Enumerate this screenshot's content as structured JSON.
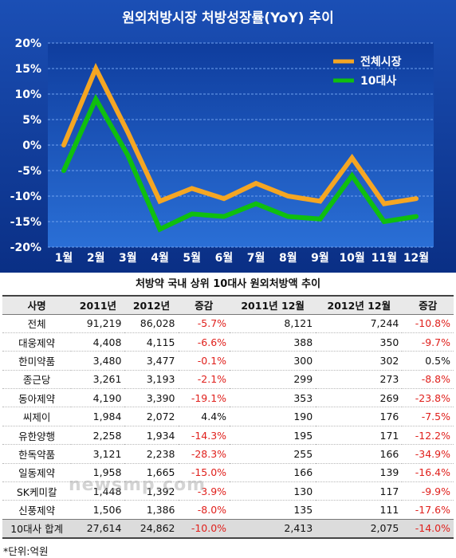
{
  "chart_data": {
    "type": "line",
    "title": "원외처방시장 처방성장률(YoY) 추이",
    "categories": [
      "1월",
      "2월",
      "3월",
      "4월",
      "5월",
      "6월",
      "7월",
      "8월",
      "9월",
      "10월",
      "11월",
      "12월"
    ],
    "yticks": [
      "20%",
      "15%",
      "10%",
      "5%",
      "0%",
      "-5%",
      "-10%",
      "-15%",
      "-20%"
    ],
    "ylim": [
      -20,
      20
    ],
    "grid": true,
    "legend_position": "top-right",
    "series": [
      {
        "name": "전체시장",
        "color": "#f5a623",
        "values": [
          0,
          15,
          2.5,
          -11,
          -8.5,
          -10.5,
          -7.5,
          -10,
          -11,
          -2.5,
          -11.5,
          -10.5
        ]
      },
      {
        "name": "10대사",
        "color": "#0fbf0f",
        "values": [
          -5,
          9,
          -2,
          -16.5,
          -13.5,
          -14,
          -11.5,
          -14,
          -14.5,
          -6,
          -15,
          -14
        ]
      }
    ]
  },
  "table": {
    "title": "처방약 국내 상위 10대사 원외처방액 추이",
    "headers": [
      "사명",
      "2011년",
      "2012년",
      "증감",
      "2011년 12월",
      "2012년 12월",
      "증감"
    ],
    "rows": [
      [
        "전체",
        "91,219",
        "86,028",
        "-5.7%",
        "8,121",
        "7,244",
        "-10.8%"
      ],
      [
        "대웅제약",
        "4,408",
        "4,115",
        "-6.6%",
        "388",
        "350",
        "-9.7%"
      ],
      [
        "한미약품",
        "3,480",
        "3,477",
        "-0.1%",
        "300",
        "302",
        "0.5%"
      ],
      [
        "종근당",
        "3,261",
        "3,193",
        "-2.1%",
        "299",
        "273",
        "-8.8%"
      ],
      [
        "동아제약",
        "4,190",
        "3,390",
        "-19.1%",
        "353",
        "269",
        "-23.8%"
      ],
      [
        "씨제이",
        "1,984",
        "2,072",
        "4.4%",
        "190",
        "176",
        "-7.5%"
      ],
      [
        "유한양행",
        "2,258",
        "1,934",
        "-14.3%",
        "195",
        "171",
        "-12.2%"
      ],
      [
        "한독약품",
        "3,121",
        "2,238",
        "-28.3%",
        "255",
        "166",
        "-34.9%"
      ],
      [
        "일동제약",
        "1,958",
        "1,665",
        "-15.0%",
        "166",
        "139",
        "-16.4%"
      ],
      [
        "SK케미칼",
        "1,448",
        "1,392",
        "-3.9%",
        "130",
        "117",
        "-9.9%"
      ],
      [
        "신풍제약",
        "1,506",
        "1,386",
        "-8.0%",
        "135",
        "111",
        "-17.6%"
      ]
    ],
    "total": [
      "10대사 합계",
      "27,614",
      "24,862",
      "-10.0%",
      "2,413",
      "2,075",
      "-14.0%"
    ],
    "unit_note": "*단위:억원"
  },
  "watermark": "newsmp.com"
}
